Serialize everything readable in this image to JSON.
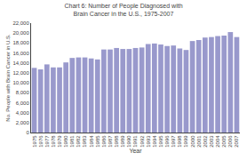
{
  "chart_data": {
    "type": "bar",
    "title": "Chart 6: Number of People Diagnosed with Brain Cancer in the U.S., 1975-2007",
    "x_label": "Year",
    "y_label": "No. People with Brain Cancer in U.S.",
    "categories": [
      "1975",
      "1976",
      "1977",
      "1978",
      "1979",
      "1980",
      "1981",
      "1982",
      "1983",
      "1984",
      "1985",
      "1986",
      "1987",
      "1988",
      "1989",
      "1990",
      "1991",
      "1992",
      "1993",
      "1994",
      "1995",
      "1996",
      "1997",
      "1998",
      "1999",
      "2000",
      "2001",
      "2002",
      "2003",
      "2004",
      "2005",
      "2006",
      "2007"
    ],
    "values": [
      13000,
      12700,
      13700,
      13100,
      13100,
      14100,
      15000,
      15100,
      15100,
      14900,
      14700,
      16700,
      16700,
      17000,
      16800,
      16800,
      17000,
      17100,
      17800,
      17900,
      17700,
      17400,
      17500,
      16900,
      16600,
      18400,
      18600,
      19100,
      19200,
      19400,
      19500,
      20200,
      19200
    ],
    "color": "#9999cc",
    "ylim": [
      0,
      22000
    ],
    "yticks": [
      0,
      {
        "value": 2000,
        "label": "2,000"
      },
      {
        "value": 4000,
        "label": "4,000"
      },
      {
        "value": 6000,
        "label": "6,000"
      },
      {
        "value": 8000,
        "label": "8,000"
      },
      {
        "value": 10000,
        "label": "10,000"
      },
      {
        "value": 12000,
        "label": "12,000"
      },
      {
        "value": 14000,
        "label": "14,000"
      },
      {
        "value": 16000,
        "label": "16,000"
      },
      {
        "value": 18000,
        "label": "18,000"
      },
      {
        "value": 20000,
        "label": "20,000"
      },
      {
        "value": 22000,
        "label": "22,000"
      }
    ],
    "grid": false
  }
}
